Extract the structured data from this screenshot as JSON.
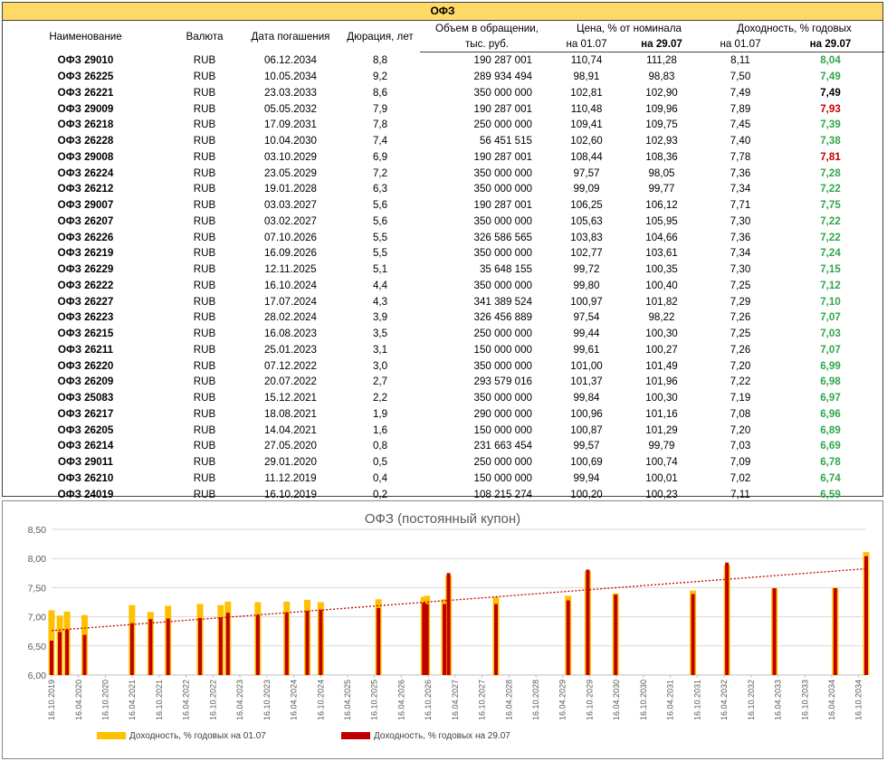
{
  "table": {
    "title": "ОФЗ",
    "headers": {
      "name": "Наименование",
      "currency": "Валюта",
      "maturity": "Дата погашения",
      "duration": "Дюрация, лет",
      "volume_l1": "Объем в обращении,",
      "volume_l2": "тыс. руб.",
      "price_group": "Цена, % от номинала",
      "price_d1": "на 01.07",
      "price_d2": "на 29.07",
      "yield_group": "Доходность, % годовых",
      "yield_d1": "на 01.07",
      "yield_d2": "на 29.07"
    },
    "rows": [
      {
        "name": "ОФЗ 29010",
        "currency": "RUB",
        "maturity": "06.12.2034",
        "duration": "8,8",
        "volume": "190 287 001",
        "price_0107": "110,74",
        "price_2907": "111,28",
        "yield_0107": "8,11",
        "yield_2907": "8,04",
        "yield_2907_color": "green"
      },
      {
        "name": "ОФЗ 26225",
        "currency": "RUB",
        "maturity": "10.05.2034",
        "duration": "9,2",
        "volume": "289 934 494",
        "price_0107": "98,91",
        "price_2907": "98,83",
        "yield_0107": "7,50",
        "yield_2907": "7,49",
        "yield_2907_color": "green"
      },
      {
        "name": "ОФЗ 26221",
        "currency": "RUB",
        "maturity": "23.03.2033",
        "duration": "8,6",
        "volume": "350 000 000",
        "price_0107": "102,81",
        "price_2907": "102,90",
        "yield_0107": "7,49",
        "yield_2907": "7,49",
        "yield_2907_color": "black"
      },
      {
        "name": "ОФЗ 29009",
        "currency": "RUB",
        "maturity": "05.05.2032",
        "duration": "7,9",
        "volume": "190 287 001",
        "price_0107": "110,48",
        "price_2907": "109,96",
        "yield_0107": "7,89",
        "yield_2907": "7,93",
        "yield_2907_color": "red"
      },
      {
        "name": "ОФЗ 26218",
        "currency": "RUB",
        "maturity": "17.09.2031",
        "duration": "7,8",
        "volume": "250 000 000",
        "price_0107": "109,41",
        "price_2907": "109,75",
        "yield_0107": "7,45",
        "yield_2907": "7,39",
        "yield_2907_color": "green"
      },
      {
        "name": "ОФЗ 26228",
        "currency": "RUB",
        "maturity": "10.04.2030",
        "duration": "7,4",
        "volume": "56 451 515",
        "price_0107": "102,60",
        "price_2907": "102,93",
        "yield_0107": "7,40",
        "yield_2907": "7,38",
        "yield_2907_color": "green"
      },
      {
        "name": "ОФЗ 29008",
        "currency": "RUB",
        "maturity": "03.10.2029",
        "duration": "6,9",
        "volume": "190 287 001",
        "price_0107": "108,44",
        "price_2907": "108,36",
        "yield_0107": "7,78",
        "yield_2907": "7,81",
        "yield_2907_color": "red"
      },
      {
        "name": "ОФЗ 26224",
        "currency": "RUB",
        "maturity": "23.05.2029",
        "duration": "7,2",
        "volume": "350 000 000",
        "price_0107": "97,57",
        "price_2907": "98,05",
        "yield_0107": "7,36",
        "yield_2907": "7,28",
        "yield_2907_color": "green"
      },
      {
        "name": "ОФЗ 26212",
        "currency": "RUB",
        "maturity": "19.01.2028",
        "duration": "6,3",
        "volume": "350 000 000",
        "price_0107": "99,09",
        "price_2907": "99,77",
        "yield_0107": "7,34",
        "yield_2907": "7,22",
        "yield_2907_color": "green"
      },
      {
        "name": "ОФЗ 29007",
        "currency": "RUB",
        "maturity": "03.03.2027",
        "duration": "5,6",
        "volume": "190 287 001",
        "price_0107": "106,25",
        "price_2907": "106,12",
        "yield_0107": "7,71",
        "yield_2907": "7,75",
        "yield_2907_color": "green"
      },
      {
        "name": "ОФЗ 26207",
        "currency": "RUB",
        "maturity": "03.02.2027",
        "duration": "5,6",
        "volume": "350 000 000",
        "price_0107": "105,63",
        "price_2907": "105,95",
        "yield_0107": "7,30",
        "yield_2907": "7,22",
        "yield_2907_color": "green"
      },
      {
        "name": "ОФЗ 26226",
        "currency": "RUB",
        "maturity": "07.10.2026",
        "duration": "5,5",
        "volume": "326 586 565",
        "price_0107": "103,83",
        "price_2907": "104,66",
        "yield_0107": "7,36",
        "yield_2907": "7,22",
        "yield_2907_color": "green"
      },
      {
        "name": "ОФЗ 26219",
        "currency": "RUB",
        "maturity": "16.09.2026",
        "duration": "5,5",
        "volume": "350 000 000",
        "price_0107": "102,77",
        "price_2907": "103,61",
        "yield_0107": "7,34",
        "yield_2907": "7,24",
        "yield_2907_color": "green"
      },
      {
        "name": "ОФЗ 26229",
        "currency": "RUB",
        "maturity": "12.11.2025",
        "duration": "5,1",
        "volume": "35 648 155",
        "price_0107": "99,72",
        "price_2907": "100,35",
        "yield_0107": "7,30",
        "yield_2907": "7,15",
        "yield_2907_color": "green"
      },
      {
        "name": "ОФЗ 26222",
        "currency": "RUB",
        "maturity": "16.10.2024",
        "duration": "4,4",
        "volume": "350 000 000",
        "price_0107": "99,80",
        "price_2907": "100,40",
        "yield_0107": "7,25",
        "yield_2907": "7,12",
        "yield_2907_color": "green"
      },
      {
        "name": "ОФЗ 26227",
        "currency": "RUB",
        "maturity": "17.07.2024",
        "duration": "4,3",
        "volume": "341 389 524",
        "price_0107": "100,97",
        "price_2907": "101,82",
        "yield_0107": "7,29",
        "yield_2907": "7,10",
        "yield_2907_color": "green"
      },
      {
        "name": "ОФЗ 26223",
        "currency": "RUB",
        "maturity": "28.02.2024",
        "duration": "3,9",
        "volume": "326 456 889",
        "price_0107": "97,54",
        "price_2907": "98,22",
        "yield_0107": "7,26",
        "yield_2907": "7,07",
        "yield_2907_color": "green"
      },
      {
        "name": "ОФЗ 26215",
        "currency": "RUB",
        "maturity": "16.08.2023",
        "duration": "3,5",
        "volume": "250 000 000",
        "price_0107": "99,44",
        "price_2907": "100,30",
        "yield_0107": "7,25",
        "yield_2907": "7,03",
        "yield_2907_color": "green"
      },
      {
        "name": "ОФЗ 26211",
        "currency": "RUB",
        "maturity": "25.01.2023",
        "duration": "3,1",
        "volume": "150 000 000",
        "price_0107": "99,61",
        "price_2907": "100,27",
        "yield_0107": "7,26",
        "yield_2907": "7,07",
        "yield_2907_color": "green"
      },
      {
        "name": "ОФЗ 26220",
        "currency": "RUB",
        "maturity": "07.12.2022",
        "duration": "3,0",
        "volume": "350 000 000",
        "price_0107": "101,00",
        "price_2907": "101,49",
        "yield_0107": "7,20",
        "yield_2907": "6,99",
        "yield_2907_color": "green"
      },
      {
        "name": "ОФЗ 26209",
        "currency": "RUB",
        "maturity": "20.07.2022",
        "duration": "2,7",
        "volume": "293 579 016",
        "price_0107": "101,37",
        "price_2907": "101,96",
        "yield_0107": "7,22",
        "yield_2907": "6,98",
        "yield_2907_color": "green"
      },
      {
        "name": "ОФЗ 25083",
        "currency": "RUB",
        "maturity": "15.12.2021",
        "duration": "2,2",
        "volume": "350 000 000",
        "price_0107": "99,84",
        "price_2907": "100,30",
        "yield_0107": "7,19",
        "yield_2907": "6,97",
        "yield_2907_color": "green"
      },
      {
        "name": "ОФЗ 26217",
        "currency": "RUB",
        "maturity": "18.08.2021",
        "duration": "1,9",
        "volume": "290 000 000",
        "price_0107": "100,96",
        "price_2907": "101,16",
        "yield_0107": "7,08",
        "yield_2907": "6,96",
        "yield_2907_color": "green"
      },
      {
        "name": "ОФЗ 26205",
        "currency": "RUB",
        "maturity": "14.04.2021",
        "duration": "1,6",
        "volume": "150 000 000",
        "price_0107": "100,87",
        "price_2907": "101,29",
        "yield_0107": "7,20",
        "yield_2907": "6,89",
        "yield_2907_color": "green"
      },
      {
        "name": "ОФЗ 26214",
        "currency": "RUB",
        "maturity": "27.05.2020",
        "duration": "0,8",
        "volume": "231 663 454",
        "price_0107": "99,57",
        "price_2907": "99,79",
        "yield_0107": "7,03",
        "yield_2907": "6,69",
        "yield_2907_color": "green"
      },
      {
        "name": "ОФЗ 29011",
        "currency": "RUB",
        "maturity": "29.01.2020",
        "duration": "0,5",
        "volume": "250 000 000",
        "price_0107": "100,69",
        "price_2907": "100,74",
        "yield_0107": "7,09",
        "yield_2907": "6,78",
        "yield_2907_color": "green"
      },
      {
        "name": "ОФЗ 26210",
        "currency": "RUB",
        "maturity": "11.12.2019",
        "duration": "0,4",
        "volume": "150 000 000",
        "price_0107": "99,94",
        "price_2907": "100,01",
        "yield_0107": "7,02",
        "yield_2907": "6,74",
        "yield_2907_color": "green"
      },
      {
        "name": "ОФЗ 24019",
        "currency": "RUB",
        "maturity": "16.10.2019",
        "duration": "0,2",
        "volume": "108 215 274",
        "price_0107": "100,20",
        "price_2907": "100,23",
        "yield_0107": "7,11",
        "yield_2907": "6,59",
        "yield_2907_color": "green"
      }
    ]
  },
  "colors": {
    "header_fill": "#ffd966",
    "yield_down": "#2ea84a",
    "yield_up": "#c00000",
    "series_0107": "#ffc000",
    "series_2907": "#c00000",
    "trendline": "#c00000"
  },
  "chart_data": {
    "type": "bar",
    "title": "ОФЗ (постоянный купон)",
    "xlabel": "",
    "ylabel": "",
    "x_axis": "date",
    "xlim": [
      "2019-10-16",
      "2034-12-06"
    ],
    "ylim": [
      6.0,
      8.5
    ],
    "y_ticks": [
      "6,00",
      "6,50",
      "7,00",
      "7,50",
      "8,00",
      "8,50"
    ],
    "x_tick_labels": [
      "16.10.2019",
      "16.04.2020",
      "16.10.2020",
      "16.04.2021",
      "16.10.2021",
      "16.04.2022",
      "16.10.2022",
      "16.04.2023",
      "16.10.2023",
      "16.04.2024",
      "16.10.2024",
      "16.04.2025",
      "16.10.2025",
      "16.04.2026",
      "16.10.2026",
      "16.04.2027",
      "16.10.2027",
      "16.04.2028",
      "16.10.2028",
      "16.04.2029",
      "16.10.2029",
      "16.04.2030",
      "16.10.2030",
      "16.04.2031",
      "16.10.2031",
      "16.04.2032",
      "16.10.2032",
      "16.04.2033",
      "16.10.2033",
      "16.04.2034",
      "16.10.2034"
    ],
    "x_tick_dates": [
      "2019-10-16",
      "2020-04-16",
      "2020-10-16",
      "2021-04-16",
      "2021-10-16",
      "2022-04-16",
      "2022-10-16",
      "2023-04-16",
      "2023-10-16",
      "2024-04-16",
      "2024-10-16",
      "2025-04-16",
      "2025-10-16",
      "2026-04-16",
      "2026-10-16",
      "2027-04-16",
      "2027-10-16",
      "2028-04-16",
      "2028-10-16",
      "2029-04-16",
      "2029-10-16",
      "2030-04-16",
      "2030-10-16",
      "2031-04-16",
      "2031-10-16",
      "2032-04-16",
      "2032-10-16",
      "2033-04-16",
      "2033-10-16",
      "2034-04-16",
      "2034-10-16"
    ],
    "grid": true,
    "legend_position": "bottom",
    "series": [
      {
        "name": "Доходность, % годовых на 01.07",
        "color": "#ffc000"
      },
      {
        "name": "Доходность, % годовых на 29.07",
        "color": "#c00000"
      }
    ],
    "points": [
      {
        "date": "2019-10-16",
        "y0107": 7.11,
        "y2907": 6.59
      },
      {
        "date": "2019-12-11",
        "y0107": 7.02,
        "y2907": 6.74
      },
      {
        "date": "2020-01-29",
        "y0107": 7.09,
        "y2907": 6.78
      },
      {
        "date": "2020-05-27",
        "y0107": 7.03,
        "y2907": 6.69
      },
      {
        "date": "2021-04-14",
        "y0107": 7.2,
        "y2907": 6.89
      },
      {
        "date": "2021-08-18",
        "y0107": 7.08,
        "y2907": 6.96
      },
      {
        "date": "2021-12-15",
        "y0107": 7.19,
        "y2907": 6.97
      },
      {
        "date": "2022-07-20",
        "y0107": 7.22,
        "y2907": 6.98
      },
      {
        "date": "2022-12-07",
        "y0107": 7.2,
        "y2907": 6.99
      },
      {
        "date": "2023-01-25",
        "y0107": 7.26,
        "y2907": 7.07
      },
      {
        "date": "2023-08-16",
        "y0107": 7.25,
        "y2907": 7.03
      },
      {
        "date": "2024-02-28",
        "y0107": 7.26,
        "y2907": 7.07
      },
      {
        "date": "2024-07-17",
        "y0107": 7.29,
        "y2907": 7.1
      },
      {
        "date": "2024-10-16",
        "y0107": 7.25,
        "y2907": 7.12
      },
      {
        "date": "2025-11-12",
        "y0107": 7.3,
        "y2907": 7.15
      },
      {
        "date": "2026-09-16",
        "y0107": 7.34,
        "y2907": 7.24
      },
      {
        "date": "2026-10-07",
        "y0107": 7.36,
        "y2907": 7.22
      },
      {
        "date": "2027-02-03",
        "y0107": 7.3,
        "y2907": 7.22
      },
      {
        "date": "2027-03-03",
        "y0107": 7.71,
        "y2907": 7.75
      },
      {
        "date": "2028-01-19",
        "y0107": 7.34,
        "y2907": 7.22
      },
      {
        "date": "2029-05-23",
        "y0107": 7.36,
        "y2907": 7.28
      },
      {
        "date": "2029-10-03",
        "y0107": 7.78,
        "y2907": 7.81
      },
      {
        "date": "2030-04-10",
        "y0107": 7.4,
        "y2907": 7.38
      },
      {
        "date": "2031-09-17",
        "y0107": 7.45,
        "y2907": 7.39
      },
      {
        "date": "2032-05-05",
        "y0107": 7.89,
        "y2907": 7.93
      },
      {
        "date": "2033-03-23",
        "y0107": 7.49,
        "y2907": 7.49
      },
      {
        "date": "2034-05-10",
        "y0107": 7.5,
        "y2907": 7.49
      },
      {
        "date": "2034-12-06",
        "y0107": 8.11,
        "y2907": 8.04
      }
    ],
    "trendline": {
      "type": "linear",
      "series": "Доходность, % годовых на 29.07",
      "style": "dotted"
    }
  }
}
